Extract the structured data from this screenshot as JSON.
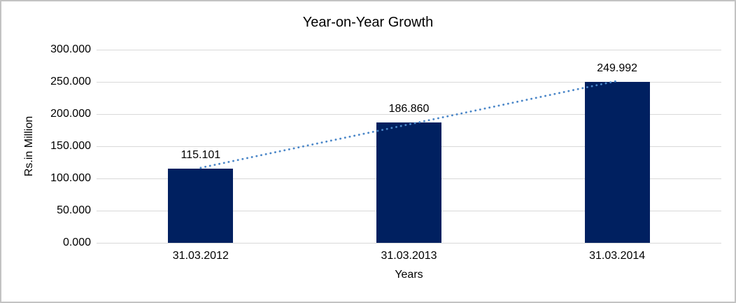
{
  "window": {
    "background": "#ffffff",
    "border_color": "#c3c3c3"
  },
  "chart_data": {
    "type": "bar",
    "title": "Year-on-Year Growth",
    "xlabel": "Years",
    "ylabel": "Rs.in Million",
    "categories": [
      "31.03.2012",
      "31.03.2013",
      "31.03.2014"
    ],
    "values": [
      115.101,
      186.86,
      249.992
    ],
    "data_labels": [
      "115.101",
      "186.860",
      "249.992"
    ],
    "yticks": [
      0,
      50,
      100,
      150,
      200,
      250,
      300
    ],
    "ytick_labels": [
      "0.000",
      "50.000",
      "100.000",
      "150.000",
      "200.000",
      "250.000",
      "300.000"
    ],
    "ylim": [
      0,
      300
    ],
    "grid": true,
    "legend": "none",
    "trendline": {
      "type": "linear",
      "style": "dotted",
      "color": "#4a86c8"
    },
    "colors": {
      "bar": "#002060",
      "gridline": "#d9d9d9",
      "axis_line": "#d9d9d9",
      "text": "#000000"
    }
  }
}
